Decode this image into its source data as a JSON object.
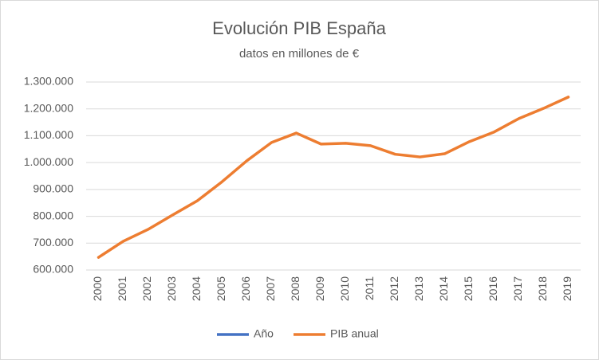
{
  "chart_data": {
    "type": "line",
    "title": "Evolución PIB España",
    "subtitle": "datos en millones de €",
    "categories": [
      "2000",
      "2001",
      "2002",
      "2003",
      "2004",
      "2005",
      "2006",
      "2007",
      "2008",
      "2009",
      "2010",
      "2011",
      "2012",
      "2013",
      "2014",
      "2015",
      "2016",
      "2017",
      "2018",
      "2019"
    ],
    "series": [
      {
        "name": "Año",
        "color": "#4472c4",
        "values": [
          null,
          null,
          null,
          null,
          null,
          null,
          null,
          null,
          null,
          null,
          null,
          null,
          null,
          null,
          null,
          null,
          null,
          null,
          null,
          null
        ]
      },
      {
        "name": "PIB anual",
        "color": "#ed7d31",
        "values": [
          647000,
          707000,
          751000,
          805000,
          858000,
          929000,
          1007000,
          1075000,
          1110000,
          1069000,
          1072000,
          1063000,
          1031000,
          1021000,
          1033000,
          1078000,
          1114000,
          1164000,
          1202000,
          1244000
        ]
      }
    ],
    "ylim": [
      600000,
      1300000
    ],
    "yticks": [
      {
        "value": 600000,
        "label": "600.000"
      },
      {
        "value": 700000,
        "label": "700.000"
      },
      {
        "value": 800000,
        "label": "800.000"
      },
      {
        "value": 900000,
        "label": "900.000"
      },
      {
        "value": 1000000,
        "label": "1.000.000"
      },
      {
        "value": 1100000,
        "label": "1.100.000"
      },
      {
        "value": 1200000,
        "label": "1.200.000"
      },
      {
        "value": 1300000,
        "label": "1.300.000"
      }
    ],
    "grid": true,
    "legend": "bottom"
  }
}
